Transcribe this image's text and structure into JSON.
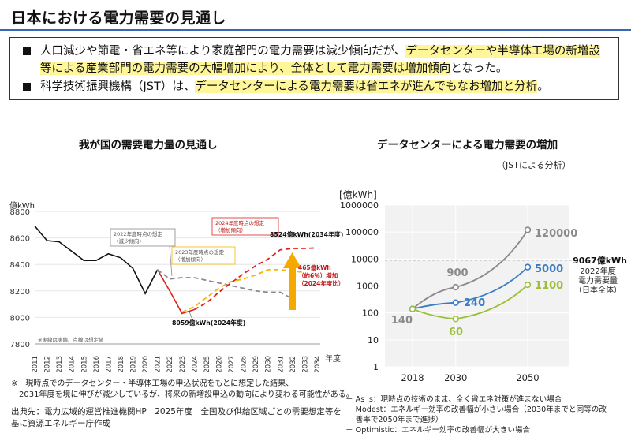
{
  "page": {
    "title": "日本における電力需要の見通し",
    "bullets": [
      {
        "plain1": "人口減少や節電・省エネ等により家庭部門の電力需要は減少傾向だが、",
        "hl1": "データセンターや半導体工場の新増設",
        "hl2": "等による産業部門の電力需要の大幅増加により、全体として電力需要は増加傾向",
        "plain2": "となった。"
      },
      {
        "plain1": "科学技術振興機構（JST）は、",
        "hl1": "データセンターによる電力需要は省エネが進んでもなお増加と分析",
        "plain2": "。"
      }
    ]
  },
  "left": {
    "title": "我が国の需要電力量の見通し",
    "y_unit": "億kWh",
    "x_unit": "年度",
    "note_small": "※実線は実績、点線は想定値",
    "box_2022": "2022年度時点の想定\n（減少傾向）",
    "box_2023": "2023年度時点の想定\n（増加傾向）",
    "box_2024": "2024年度時点の想定\n（増加傾向）",
    "label_end": "8524億kWh(2034年度)",
    "label_start": "8059億kWh(2024年度)",
    "increase": "465億kWh\n（約6％）増加\n（2024年度比）",
    "footnote": "※　現時点でのデータセンター・半導体工場の申込状況をもとに想定した結果、\n　2031年度を境に伸びが減少しているが、将来の新増設申込の動向により変わる可能性がある。",
    "source": "出典先：電力広域的運営推進機関HP　2025年度　全国及び供給区域ごとの需要想定等を\n基に資源エネルギー庁作成"
  },
  "right": {
    "title": "データセンターによる電力需要の増加",
    "subtitle": "（JSTによる分析）",
    "y_unit": "[億kWh]",
    "ref_value": "9067億kWh",
    "ref_desc": "2022年度\n電力需要量\n（日本全体）",
    "legend": [
      "－ As is：現時点の技術のまま、全く省エネ対策が進まない場合",
      "－ Modest：エネルギー効率の改善幅が小さい場合（2030年までと同等の改\n　 善率で2050年まで進捗）",
      "－ Optimistic：エネルギー効率の改善幅が大きい場合"
    ]
  },
  "chart_data": [
    {
      "type": "line",
      "title": "我が国の需要電力量の見通し",
      "xlabel": "年度",
      "ylabel": "億kWh",
      "ylim": [
        7800,
        8800
      ],
      "yticks": [
        7800,
        8000,
        8200,
        8400,
        8600,
        8800
      ],
      "x": [
        2011,
        2012,
        2013,
        2014,
        2015,
        2016,
        2017,
        2018,
        2019,
        2020,
        2021,
        2022,
        2023,
        2024,
        2025,
        2026,
        2027,
        2028,
        2029,
        2030,
        2031,
        2032,
        2033,
        2034
      ],
      "series": [
        {
          "style": "actual",
          "color": "#111111",
          "x": [
            2011,
            2012,
            2013,
            2014,
            2015,
            2016,
            2017,
            2018,
            2019,
            2020,
            2021
          ],
          "values": [
            8690,
            8580,
            8570,
            8500,
            8430,
            8430,
            8480,
            8450,
            8370,
            8180,
            8360
          ]
        },
        {
          "style": "actual",
          "color": "#e02020",
          "x": [
            2021,
            2022,
            2023,
            2024
          ],
          "values": [
            8360,
            8200,
            8030,
            8059
          ]
        },
        {
          "name": "2022年度時点の想定",
          "style": "dashed",
          "color": "#8a8a8a",
          "x": [
            2021,
            2022,
            2023,
            2024,
            2025,
            2026,
            2027,
            2028,
            2029,
            2030,
            2031,
            2032
          ],
          "values": [
            8360,
            8290,
            8300,
            8300,
            8280,
            8260,
            8240,
            8220,
            8200,
            8190,
            8190,
            8140
          ]
        },
        {
          "name": "2023年度時点の想定",
          "style": "dashed",
          "color": "#f5b800",
          "x": [
            2023,
            2024,
            2025,
            2026,
            2027,
            2028,
            2029,
            2030,
            2031,
            2032,
            2033
          ],
          "values": [
            8040,
            8080,
            8150,
            8220,
            8270,
            8290,
            8320,
            8360,
            8360,
            8350,
            8340
          ]
        },
        {
          "name": "2024年度時点の想定",
          "style": "dashed",
          "color": "#e02020",
          "x": [
            2024,
            2025,
            2026,
            2027,
            2028,
            2029,
            2030,
            2031,
            2032,
            2033,
            2034
          ],
          "values": [
            8059,
            8110,
            8190,
            8260,
            8330,
            8390,
            8440,
            8510,
            8520,
            8521,
            8524
          ]
        }
      ]
    },
    {
      "type": "line",
      "title": "データセンターによる電力需要の増加",
      "subtitle": "（JSTによる分析）",
      "ylabel": "[億kWh]",
      "scale": "log",
      "yticks": [
        1,
        10,
        100,
        1000,
        10000,
        100000,
        1000000
      ],
      "ytick_labels": [
        "1",
        "10",
        "100",
        "1000",
        "10000",
        "100000",
        "1000000"
      ],
      "xticks": [
        2018,
        2030,
        2050
      ],
      "reference_line": {
        "value": 9067,
        "label": "9067億kWh"
      },
      "series": [
        {
          "name": "As is",
          "color": "#8a8a8a",
          "x": [
            2018,
            2030,
            2050
          ],
          "values": [
            140,
            900,
            120000
          ],
          "labels": [
            "140",
            "900",
            "120000"
          ]
        },
        {
          "name": "Modest",
          "color": "#3a7cc4",
          "x": [
            2018,
            2030,
            2050
          ],
          "values": [
            140,
            240,
            5000
          ],
          "labels": [
            "",
            "240",
            "5000"
          ]
        },
        {
          "name": "Optimistic",
          "color": "#9bbf3a",
          "x": [
            2018,
            2030,
            2050
          ],
          "values": [
            140,
            60,
            1100
          ],
          "labels": [
            "",
            "60",
            "1100"
          ]
        }
      ]
    }
  ]
}
